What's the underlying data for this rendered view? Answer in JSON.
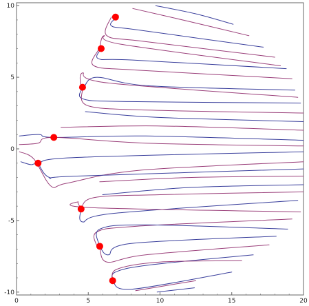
{
  "chart_data": {
    "type": "line",
    "title": "",
    "xlabel": "",
    "ylabel": "",
    "xlim": [
      0,
      20
    ],
    "ylim": [
      -10.2,
      10.2
    ],
    "grid": false,
    "legend": "none",
    "frame": "box",
    "x_ticks": [
      {
        "value": 0,
        "label": "0"
      },
      {
        "value": 5,
        "label": "5"
      },
      {
        "value": 10,
        "label": "10"
      },
      {
        "value": 15,
        "label": "15"
      },
      {
        "value": 20,
        "label": "20"
      }
    ],
    "y_ticks": [
      {
        "value": 10,
        "label": "10"
      },
      {
        "value": 5,
        "label": "5"
      },
      {
        "value": 0,
        "label": "0"
      },
      {
        "value": -5,
        "label": "-5"
      },
      {
        "value": -10,
        "label": "-10"
      }
    ],
    "colors": {
      "blue_curves": "#3a3f9c",
      "purple_curves": "#9a3f7a",
      "critical_points": "#ff0000",
      "frame": "#666666",
      "axis": "#999999"
    },
    "critical_points": [
      {
        "x": 6.9,
        "y": 9.2
      },
      {
        "x": 5.9,
        "y": 7.0
      },
      {
        "x": 4.6,
        "y": 4.3
      },
      {
        "x": 2.6,
        "y": 0.8
      },
      {
        "x": 1.5,
        "y": -1.0
      },
      {
        "x": 4.5,
        "y": -4.2
      },
      {
        "x": 5.8,
        "y": -6.8
      },
      {
        "x": 6.7,
        "y": -9.2
      }
    ],
    "series": [
      {
        "color_key": "blue_curves",
        "points": [
          [
            9.7,
            10.0
          ],
          [
            12.6,
            9.4
          ],
          [
            15.1,
            8.7
          ]
        ]
      },
      {
        "color_key": "purple_curves",
        "points": [
          [
            8.1,
            9.8
          ],
          [
            12.0,
            8.9
          ],
          [
            16.2,
            7.9
          ]
        ]
      },
      {
        "color_key": "blue_curves",
        "points": [
          [
            7.1,
            9.3
          ],
          [
            6.6,
            8.6
          ],
          [
            8.5,
            8.3
          ],
          [
            17.2,
            7.1
          ]
        ]
      },
      {
        "color_key": "purple_curves",
        "points": [
          [
            6.6,
            9.2
          ],
          [
            6.3,
            7.9
          ],
          [
            8.9,
            7.5
          ],
          [
            18.0,
            6.4
          ]
        ]
      },
      {
        "color_key": "blue_curves",
        "points": [
          [
            6.0,
            7.1
          ],
          [
            5.7,
            6.3
          ],
          [
            8.1,
            6.2
          ],
          [
            18.8,
            5.6
          ]
        ]
      },
      {
        "color_key": "purple_curves",
        "points": [
          [
            5.8,
            7.0
          ],
          [
            6.1,
            7.9
          ],
          [
            7.3,
            7.3
          ],
          [
            18.4,
            5.8
          ]
        ]
      },
      {
        "color_key": "purple_curves",
        "points": [
          [
            5.7,
            6.9
          ],
          [
            5.4,
            5.8
          ],
          [
            8.4,
            5.5
          ],
          [
            19.2,
            4.9
          ]
        ]
      },
      {
        "color_key": "blue_curves",
        "points": [
          [
            4.7,
            4.4
          ],
          [
            4.6,
            3.5
          ],
          [
            7.9,
            3.3
          ],
          [
            19.8,
            3.2
          ]
        ]
      },
      {
        "color_key": "blue_curves",
        "points": [
          [
            4.7,
            4.3
          ],
          [
            5.6,
            5.0
          ],
          [
            9.2,
            4.4
          ],
          [
            19.4,
            4.1
          ]
        ]
      },
      {
        "color_key": "purple_curves",
        "points": [
          [
            4.5,
            4.2
          ],
          [
            4.6,
            5.3
          ],
          [
            6.4,
            4.6
          ],
          [
            19.6,
            3.6
          ]
        ]
      },
      {
        "color_key": "purple_curves",
        "points": [
          [
            4.6,
            4.2
          ],
          [
            5.0,
            3.0
          ],
          [
            9.5,
            2.7
          ],
          [
            20.0,
            2.5
          ]
        ]
      },
      {
        "color_key": "blue_curves",
        "points": [
          [
            4.8,
            2.6
          ],
          [
            9.8,
            2.2
          ],
          [
            20.0,
            1.9
          ]
        ]
      },
      {
        "color_key": "purple_curves",
        "points": [
          [
            3.1,
            1.5
          ],
          [
            9.8,
            1.6
          ],
          [
            20.0,
            1.3
          ]
        ]
      },
      {
        "color_key": "blue_curves",
        "points": [
          [
            0.2,
            0.9
          ],
          [
            1.6,
            1.0
          ],
          [
            2.6,
            0.8
          ],
          [
            9.0,
            0.9
          ],
          [
            20.0,
            0.6
          ]
        ]
      },
      {
        "color_key": "purple_curves",
        "points": [
          [
            0.2,
            0.3
          ],
          [
            1.5,
            0.4
          ],
          [
            2.6,
            0.8
          ],
          [
            9.0,
            0.4
          ],
          [
            20.0,
            0.2
          ]
        ]
      },
      {
        "color_key": "blue_curves",
        "points": [
          [
            0.3,
            -0.9
          ],
          [
            1.0,
            -1.1
          ],
          [
            1.5,
            -1.0
          ],
          [
            4.2,
            -0.6
          ],
          [
            20.0,
            -0.2
          ]
        ]
      },
      {
        "color_key": "purple_curves",
        "points": [
          [
            0.2,
            -0.2
          ],
          [
            1.2,
            -0.7
          ],
          [
            2.4,
            -2.6
          ],
          [
            3.5,
            -2.4
          ],
          [
            8.5,
            -1.5
          ],
          [
            20.0,
            -0.9
          ]
        ]
      },
      {
        "color_key": "blue_curves",
        "points": [
          [
            1.5,
            -1.0
          ],
          [
            2.3,
            -2.0
          ],
          [
            4.2,
            -1.9
          ],
          [
            20.0,
            -1.4
          ]
        ]
      },
      {
        "color_key": "purple_curves",
        "points": [
          [
            5.8,
            -2.3
          ],
          [
            12.0,
            -2.0
          ],
          [
            20.0,
            -1.9
          ]
        ]
      },
      {
        "color_key": "blue_curves",
        "points": [
          [
            6.0,
            -3.2
          ],
          [
            12.0,
            -2.7
          ],
          [
            20.0,
            -2.5
          ]
        ]
      },
      {
        "color_key": "purple_curves",
        "points": [
          [
            4.5,
            -4.2
          ],
          [
            5.4,
            -3.4
          ],
          [
            10.0,
            -3.2
          ],
          [
            20.0,
            -3.0
          ]
        ]
      },
      {
        "color_key": "blue_curves",
        "points": [
          [
            4.5,
            -4.2
          ],
          [
            4.6,
            -5.1
          ],
          [
            6.8,
            -4.5
          ],
          [
            19.6,
            -3.6
          ]
        ]
      },
      {
        "color_key": "purple_curves",
        "points": [
          [
            4.5,
            -4.2
          ],
          [
            4.3,
            -3.7
          ],
          [
            5.1,
            -4.1
          ],
          [
            19.8,
            -4.4
          ]
        ]
      },
      {
        "color_key": "purple_curves",
        "points": [
          [
            5.6,
            -6.8
          ],
          [
            5.6,
            -5.8
          ],
          [
            8.4,
            -5.4
          ],
          [
            19.2,
            -4.9
          ]
        ]
      },
      {
        "color_key": "blue_curves",
        "points": [
          [
            5.8,
            -6.8
          ],
          [
            5.8,
            -5.6
          ],
          [
            9.0,
            -5.3
          ],
          [
            18.9,
            -5.6
          ]
        ]
      },
      {
        "color_key": "blue_curves",
        "points": [
          [
            5.8,
            -6.8
          ],
          [
            6.4,
            -7.4
          ],
          [
            8.0,
            -6.6
          ],
          [
            18.1,
            -6.1
          ]
        ]
      },
      {
        "color_key": "purple_curves",
        "points": [
          [
            5.8,
            -6.8
          ],
          [
            6.3,
            -7.9
          ],
          [
            9.0,
            -7.4
          ],
          [
            17.6,
            -6.7
          ]
        ]
      },
      {
        "color_key": "blue_curves",
        "points": [
          [
            6.7,
            -9.2
          ],
          [
            6.9,
            -8.6
          ],
          [
            9.3,
            -8.1
          ],
          [
            16.5,
            -7.4
          ]
        ]
      },
      {
        "color_key": "purple_curves",
        "points": [
          [
            6.7,
            -9.2
          ],
          [
            7.0,
            -8.4
          ],
          [
            10.0,
            -7.9
          ],
          [
            15.7,
            -7.8
          ]
        ]
      },
      {
        "color_key": "blue_curves",
        "points": [
          [
            6.7,
            -9.2
          ],
          [
            8.0,
            -9.8
          ],
          [
            15.0,
            -8.6
          ]
        ]
      },
      {
        "color_key": "purple_curves",
        "points": [
          [
            8.3,
            -9.9
          ],
          [
            12.5,
            -9.2
          ]
        ]
      },
      {
        "color_key": "blue_curves",
        "points": [
          [
            9.8,
            -10.0
          ],
          [
            12.4,
            -9.7
          ]
        ]
      }
    ]
  }
}
